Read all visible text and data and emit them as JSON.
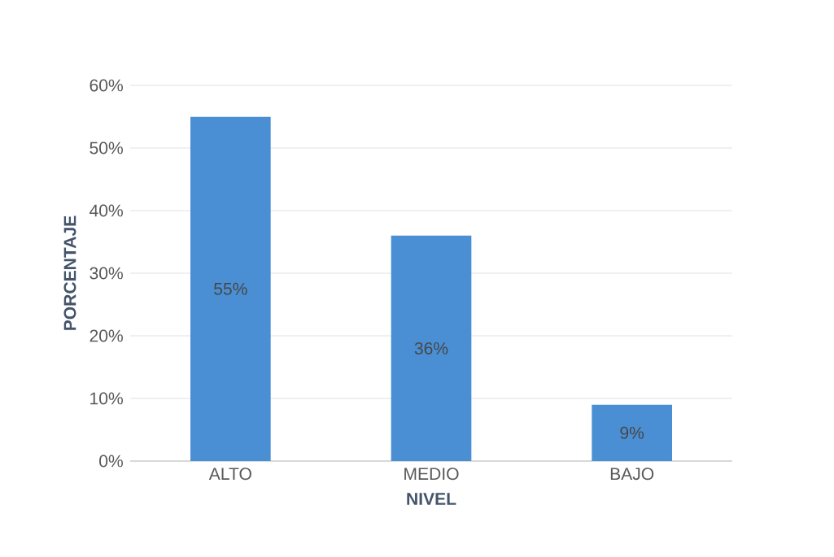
{
  "chart_data": {
    "type": "bar",
    "xlabel": "NIVEL",
    "ylabel": "PORCENTAJE",
    "categories": [
      "ALTO",
      "MEDIO",
      "BAJO"
    ],
    "values": [
      55,
      36,
      9
    ],
    "value_labels": [
      "55%",
      "36%",
      "9%"
    ],
    "color": "#4a8fd4",
    "ylim": [
      0,
      60
    ],
    "yticks": [
      {
        "value": 0,
        "label": "0%"
      },
      {
        "value": 10,
        "label": "10%"
      },
      {
        "value": 20,
        "label": "20%"
      },
      {
        "value": 30,
        "label": "30%"
      },
      {
        "value": 40,
        "label": "40%"
      },
      {
        "value": 50,
        "label": "50%"
      },
      {
        "value": 60,
        "label": "60%"
      }
    ],
    "grid": "y"
  }
}
